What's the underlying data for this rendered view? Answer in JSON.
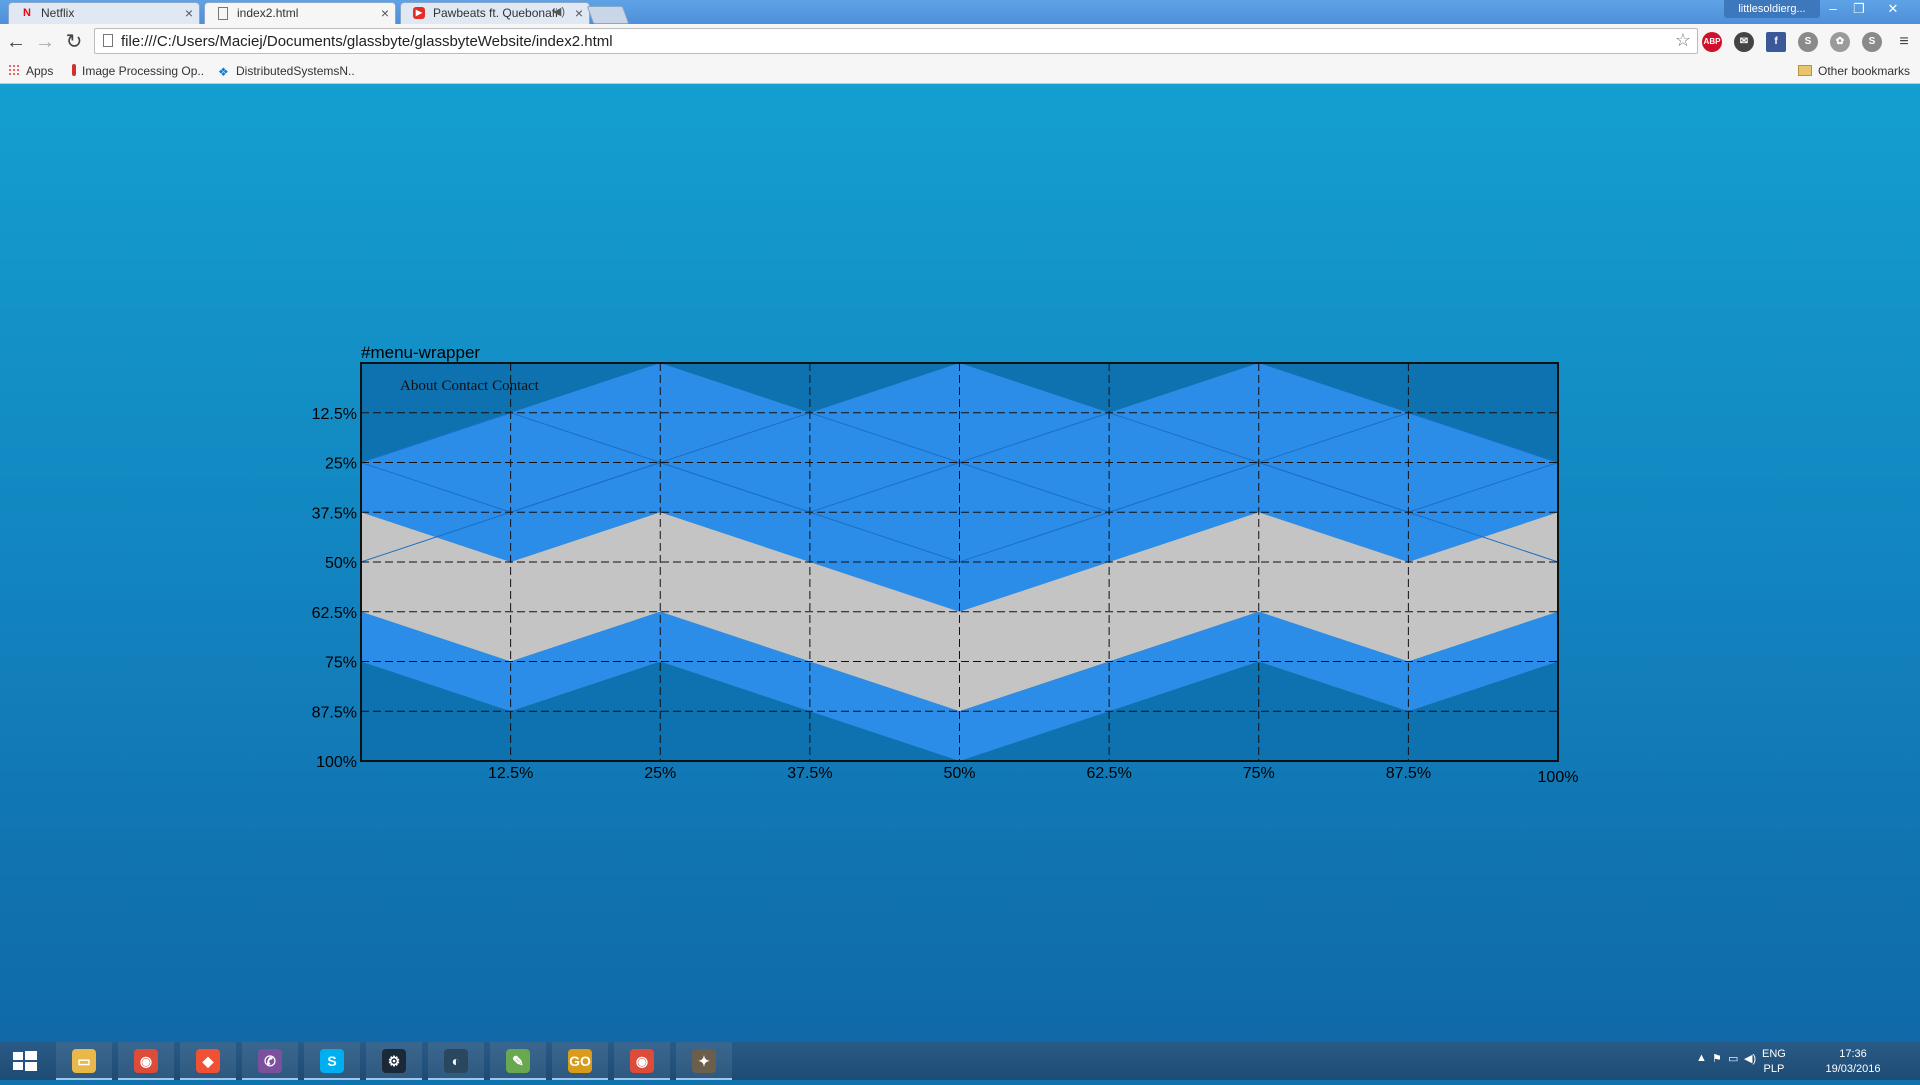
{
  "browser": {
    "tabs": [
      {
        "label": "Netflix",
        "icon": "netflix-icon",
        "active": false
      },
      {
        "label": "index2.html",
        "icon": "page-icon",
        "active": true
      },
      {
        "label": "Pawbeats ft. Quebonafide",
        "icon": "youtube-icon",
        "active": false
      }
    ],
    "profile": "littlesoldierg...",
    "url": "file:///C:/Users/Maciej/Documents/glassbyte/glassbyteWebsite/index2.html",
    "bookmarks": [
      {
        "label": "Apps",
        "icon": "apps-grid-icon"
      },
      {
        "label": "Image Processing Op...",
        "icon": "info-icon"
      },
      {
        "label": "DistributedSystemsN...",
        "icon": "dropbox-icon"
      }
    ],
    "other_bookmarks": "Other bookmarks",
    "extensions": [
      "star-icon",
      "adblock-icon",
      "chat-extension-icon",
      "facebook-icon",
      "skype-icon",
      "elephant-icon",
      "skype-icon",
      "menu-icon"
    ]
  },
  "page": {
    "label": "#menu-wrapper",
    "menu_links": [
      "About",
      "Contact",
      "Contact"
    ],
    "y_ticks": [
      "12.5%",
      "25%",
      "37.5%",
      "50%",
      "62.5%",
      "75%",
      "87.5%",
      "100%"
    ],
    "x_ticks": [
      "12.5%",
      "25%",
      "37.5%",
      "50%",
      "62.5%",
      "75%",
      "87.5%",
      "100%"
    ],
    "colors": {
      "blue": "#2b8de8",
      "dark": "#0f72b0",
      "gray": "#c4c4c4",
      "border": "#111111"
    }
  },
  "taskbar": {
    "apps": [
      "file-explorer-icon",
      "chrome-icon",
      "git-icon",
      "viber-icon",
      "skype-icon",
      "steam-icon",
      "steam-alt-icon",
      "notepad-icon",
      "csgo-icon",
      "chrome-icon",
      "gimp-icon"
    ],
    "lang_top": "ENG",
    "lang_bottom": "PLP",
    "time": "17:36",
    "date": "19/03/2016"
  }
}
